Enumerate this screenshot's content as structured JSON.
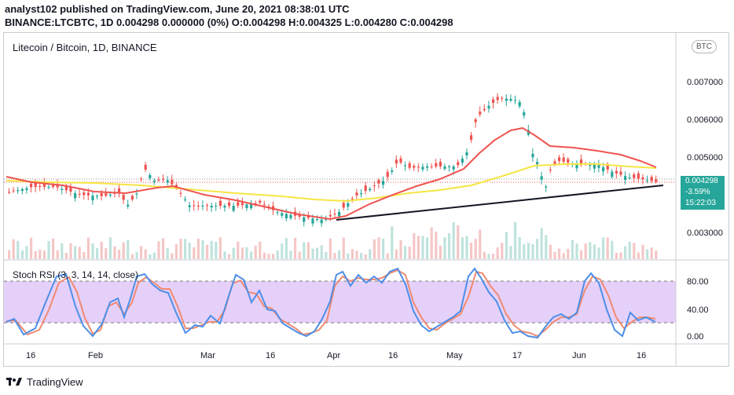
{
  "header": {
    "line1": "analyst102 published on TradingView.com, June 20, 2021 08:38:01 UTC",
    "line2": "BINANCE:LTCBTC, 1D 0.004298 0.000000 (0%) O:0.004298 H:0.004325 L:0.004280 C:0.004298"
  },
  "chart": {
    "symbol_title": "Litecoin / Bitcoin, 1D, BINANCE",
    "currency_badge": "BTC",
    "price_axis": [
      "0.007000",
      "0.006000",
      "0.005000",
      "0.003000"
    ],
    "current_price": "0.004298",
    "change_pct": "-3.59%",
    "countdown": "15:22:03",
    "up_color": "#26a69a",
    "down_color": "#ef5350",
    "ma_fast_color": "#ef5350",
    "ma_slow_color": "#f5e642"
  },
  "rsi": {
    "title": "Stoch RSI (3, 3, 14, 14, close)",
    "axis": [
      "80.00",
      "40.00",
      "0.00"
    ],
    "k_color": "#4d8fe8",
    "d_color": "#f08a70",
    "band_color": "#e1c8f8"
  },
  "time_axis": [
    "16",
    "Feb",
    "Mar",
    "16",
    "Apr",
    "16",
    "May",
    "17",
    "Jun",
    "16"
  ],
  "brand": "TradingView"
}
